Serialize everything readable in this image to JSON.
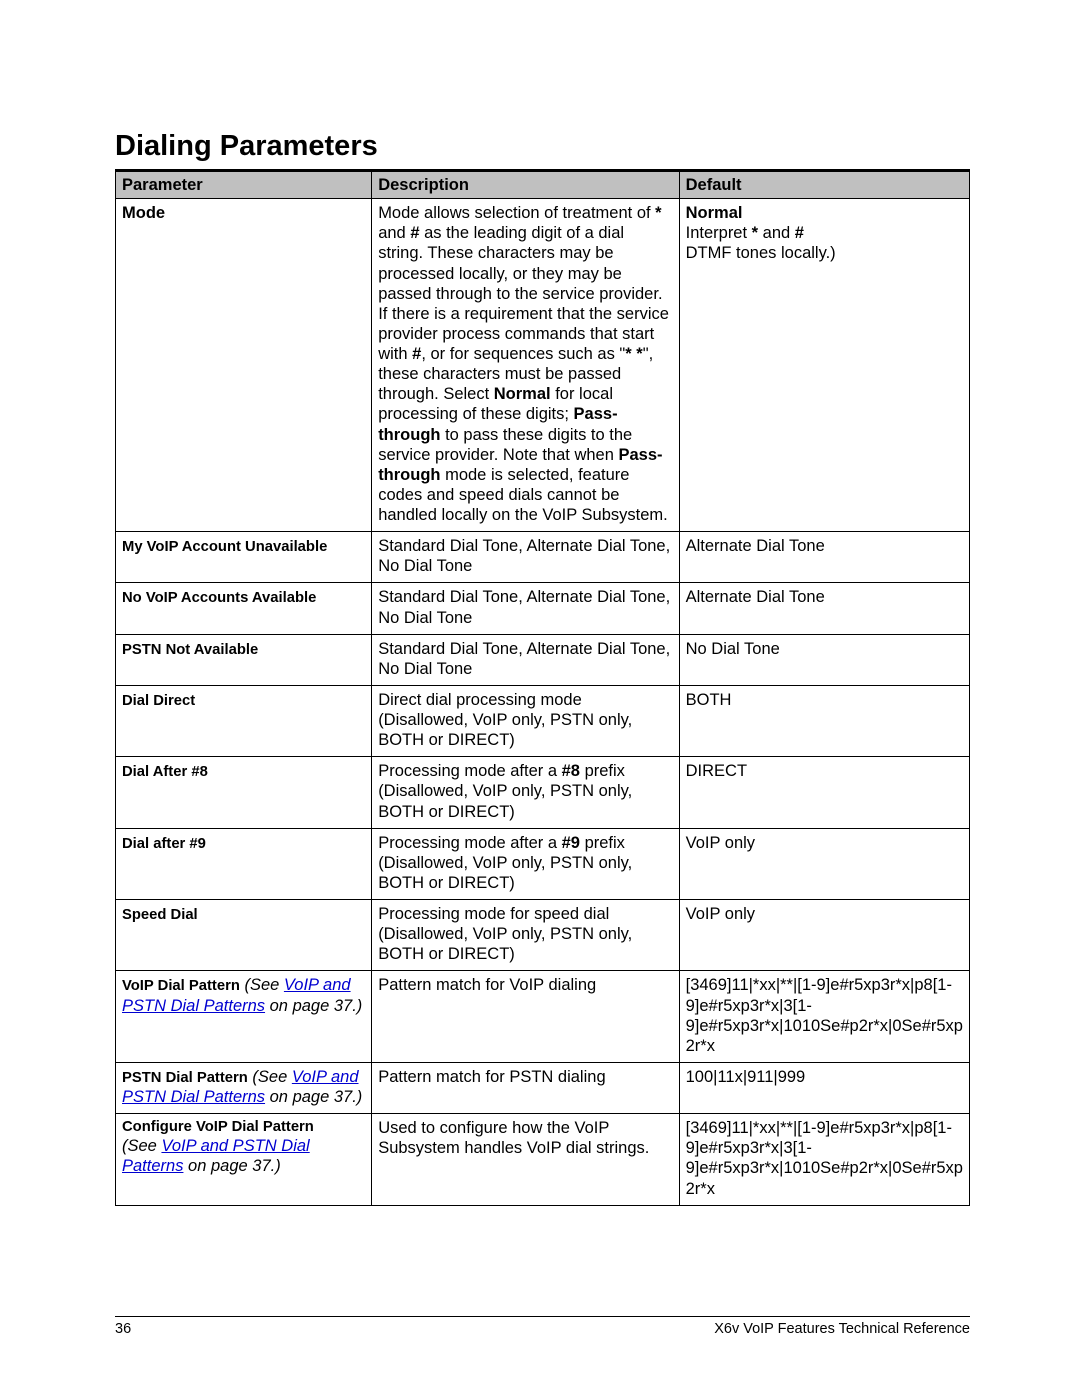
{
  "heading": "Dialing Parameters",
  "columns": {
    "c1": "Parameter",
    "c2": "Description",
    "c3": "Default"
  },
  "rows": {
    "mode": {
      "param": "Mode",
      "desc": {
        "p1": "Mode allows selection of treatment of ",
        "star1": "*",
        "p2": " and ",
        "hash1": "#",
        "p3": " as the leading digit of a dial string. These characters may be processed locally, or they may be passed through to the service provider. If there is a requirement that the service provider process commands that start with ",
        "hash2": "#",
        "p4": ", or for sequences such as \"",
        "starstar": "* *",
        "p5": "\", these characters must be passed through. Select ",
        "normal": "Normal",
        "p6": " for local processing of these digits; ",
        "pt1": "Pass-through",
        "p7": " to pass these digits to the service provider. Note that when ",
        "pt2": "Pass-through",
        "p8": " mode is selected, feature codes and speed dials cannot be handled locally on the VoIP Subsystem."
      },
      "def": {
        "d1": "Normal",
        "d2a": "Interpret ",
        "dstar": "*",
        "d2b": " and ",
        "dhash": "#",
        "d2c": " DTMF tones locally.)"
      }
    },
    "myvoip": {
      "param": "My VoIP Account Unavailable",
      "desc": "Standard Dial Tone, Alternate Dial Tone, No Dial Tone",
      "def": "Alternate Dial Tone"
    },
    "novoip": {
      "param": "No VoIP Accounts Available",
      "desc": "Standard Dial Tone, Alternate Dial Tone, No Dial Tone",
      "def": "Alternate Dial Tone"
    },
    "pstnna": {
      "param": "PSTN Not Available",
      "desc": "Standard Dial Tone, Alternate Dial Tone, No Dial Tone",
      "def": "No Dial Tone"
    },
    "dialdirect": {
      "param": "Dial Direct",
      "desc": "Direct dial processing mode (Disallowed, VoIP only, PSTN only, BOTH or DIRECT)",
      "def": "BOTH"
    },
    "dial8": {
      "param": "Dial After #8",
      "desc_a": "Processing mode after a ",
      "desc_b": "#8",
      "desc_c": " prefix (Disallowed, VoIP only, PSTN only, BOTH or DIRECT)",
      "def": "DIRECT"
    },
    "dial9": {
      "param": "Dial after #9",
      "desc_a": "Processing mode after a ",
      "desc_b": "#9",
      "desc_c": " prefix (Disallowed, VoIP only, PSTN only, BOTH or DIRECT)",
      "def": "VoIP only"
    },
    "speed": {
      "param": "Speed Dial",
      "desc": "Processing mode for speed dial (Disallowed, VoIP only, PSTN only, BOTH or DIRECT)",
      "def": "VoIP only"
    },
    "voipdp": {
      "param": "VoIP Dial Pattern",
      "see_pre": " (See ",
      "see_link": "VoIP and PSTN Dial Patterns",
      "see_post": " on page 37.)",
      "desc": "Pattern match for VoIP dialing",
      "def": "[3469]11|*xx|**|[1-9]e#r5xp3r*x|p8[1-9]e#r5xp3r*x|3[1-9]e#r5xp3r*x|1010Se#p2r*x|0Se#r5xp2r*x"
    },
    "pstndp": {
      "param": "PSTN Dial Pattern",
      "see_pre": " (See ",
      "see_link": "VoIP and PSTN Dial Patterns",
      "see_post": " on page 37.)",
      "desc": "Pattern match for PSTN dialing",
      "def": "100|11x|911|999"
    },
    "confvoip": {
      "param": "Configure VoIP Dial Pattern",
      "see_pre": "(See ",
      "see_link": "VoIP and PSTN Dial Patterns",
      "see_post": " on page 37.)",
      "desc": "Used to configure how the VoIP Subsystem handles VoIP dial strings.",
      "def": "[3469]11|*xx|**|[1-9]e#r5xp3r*x|p8[1-9]e#r5xp3r*x|3[1-9]e#r5xp3r*x|1010Se#p2r*x|0Se#r5xp2r*x"
    }
  },
  "footer": {
    "page": "36",
    "title": "X6v VoIP Features Technical Reference"
  }
}
